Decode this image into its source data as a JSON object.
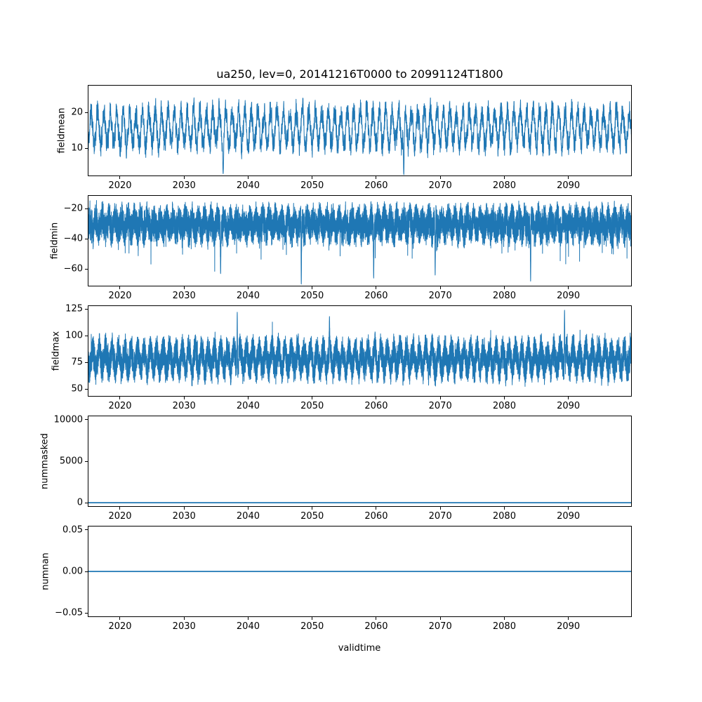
{
  "title": "ua250, lev=0, 20141216T0000 to 20991124T1800",
  "xlabel": "validtime",
  "style": {
    "line_color": "#1f77b4",
    "axis_color": "#000000",
    "background": "#ffffff"
  },
  "x_axis": {
    "lim": [
      2014.96,
      2099.9
    ],
    "ticks": [
      {
        "v": 2020,
        "label": "2020"
      },
      {
        "v": 2030,
        "label": "2030"
      },
      {
        "v": 2040,
        "label": "2040"
      },
      {
        "v": 2050,
        "label": "2050"
      },
      {
        "v": 2060,
        "label": "2060"
      },
      {
        "v": 2070,
        "label": "2070"
      },
      {
        "v": 2080,
        "label": "2080"
      },
      {
        "v": 2090,
        "label": "2090"
      }
    ]
  },
  "chart_data": [
    {
      "type": "line",
      "ylabel": "fieldmean",
      "ylim": [
        2.3,
        27.6
      ],
      "y_ticks": [
        {
          "v": 10,
          "label": "10"
        },
        {
          "v": 20,
          "label": "20"
        }
      ],
      "summary": {
        "approx_mean": 16,
        "approx_min": 2.7,
        "approx_max": 27,
        "pattern": "annual oscillation with noise"
      },
      "series_model": {
        "kind": "noisy-seasonal",
        "seed": 11,
        "n": 6000,
        "base": 15.6,
        "seasonal_amp": 4.6,
        "seasonal_phase": 0.25,
        "ar": 0.45,
        "noise_amp": 2.7,
        "clip": [
          2.6,
          27.2
        ],
        "spikes": [
          {
            "t": 2036.1,
            "v": 3.0,
            "w": 0.09
          },
          {
            "t": 2064.3,
            "v": 2.7,
            "w": 0.09
          }
        ]
      }
    },
    {
      "type": "line",
      "ylabel": "fieldmin",
      "ylim": [
        -71.5,
        -11.0
      ],
      "y_ticks": [
        {
          "v": -20,
          "label": "−20"
        },
        {
          "v": -40,
          "label": "−40"
        },
        {
          "v": -60,
          "label": "−60"
        }
      ],
      "summary": {
        "approx_mean": -30,
        "approx_min": -70,
        "approx_max": -12,
        "pattern": "dense noise band with downward spikes"
      },
      "series_model": {
        "kind": "noisy-seasonal",
        "seed": 22,
        "n": 12000,
        "base": -30.5,
        "seasonal_amp": 4.0,
        "seasonal_phase": 0.0,
        "ar": 0.3,
        "noise_amp": 9.5,
        "tail": {
          "p": 0.012,
          "amp": -18
        },
        "clip": [
          -71.0,
          -11.3
        ],
        "spikes": [
          {
            "t": 2035.7,
            "v": -63,
            "w": 0.05
          },
          {
            "t": 2048.3,
            "v": -70,
            "w": 0.05
          },
          {
            "t": 2059.6,
            "v": -66,
            "w": 0.05
          },
          {
            "t": 2069.2,
            "v": -64,
            "w": 0.05
          },
          {
            "t": 2084.1,
            "v": -68,
            "w": 0.05
          }
        ]
      }
    },
    {
      "type": "line",
      "ylabel": "fieldmax",
      "ylim": [
        42.9,
        128.4
      ],
      "y_ticks": [
        {
          "v": 50,
          "label": "50"
        },
        {
          "v": 75,
          "label": "75"
        },
        {
          "v": 100,
          "label": "100"
        },
        {
          "v": 125,
          "label": "125"
        }
      ],
      "summary": {
        "approx_mean": 78,
        "approx_min": 45,
        "approx_max": 125,
        "pattern": "dense noise band with upward spikes"
      },
      "series_model": {
        "kind": "noisy-seasonal",
        "seed": 33,
        "n": 12000,
        "base": 78,
        "seasonal_amp": 9.0,
        "seasonal_phase": 0.5,
        "ar": 0.3,
        "noise_amp": 13.0,
        "tail": {
          "p": 0.01,
          "amp": 15
        },
        "clip": [
          44.0,
          126.0
        ],
        "spikes": [
          {
            "t": 2038.3,
            "v": 122,
            "w": 0.05
          },
          {
            "t": 2052.7,
            "v": 118,
            "w": 0.05
          },
          {
            "t": 2089.4,
            "v": 124,
            "w": 0.05
          }
        ]
      }
    },
    {
      "type": "line",
      "ylabel": "nummasked",
      "ylim": [
        -500,
        10500
      ],
      "y_ticks": [
        {
          "v": 0,
          "label": "0"
        },
        {
          "v": 5000,
          "label": "5000"
        },
        {
          "v": 10000,
          "label": "10000"
        }
      ],
      "summary": {
        "constant_value": 0
      },
      "series_model": {
        "kind": "constant",
        "value": 0
      }
    },
    {
      "type": "line",
      "ylabel": "numnan",
      "ylim": [
        -0.055,
        0.055
      ],
      "y_ticks": [
        {
          "v": -0.05,
          "label": "−0.05"
        },
        {
          "v": 0,
          "label": "0.00"
        },
        {
          "v": 0.05,
          "label": "0.05"
        }
      ],
      "summary": {
        "constant_value": 0
      },
      "series_model": {
        "kind": "constant",
        "value": 0
      }
    }
  ]
}
